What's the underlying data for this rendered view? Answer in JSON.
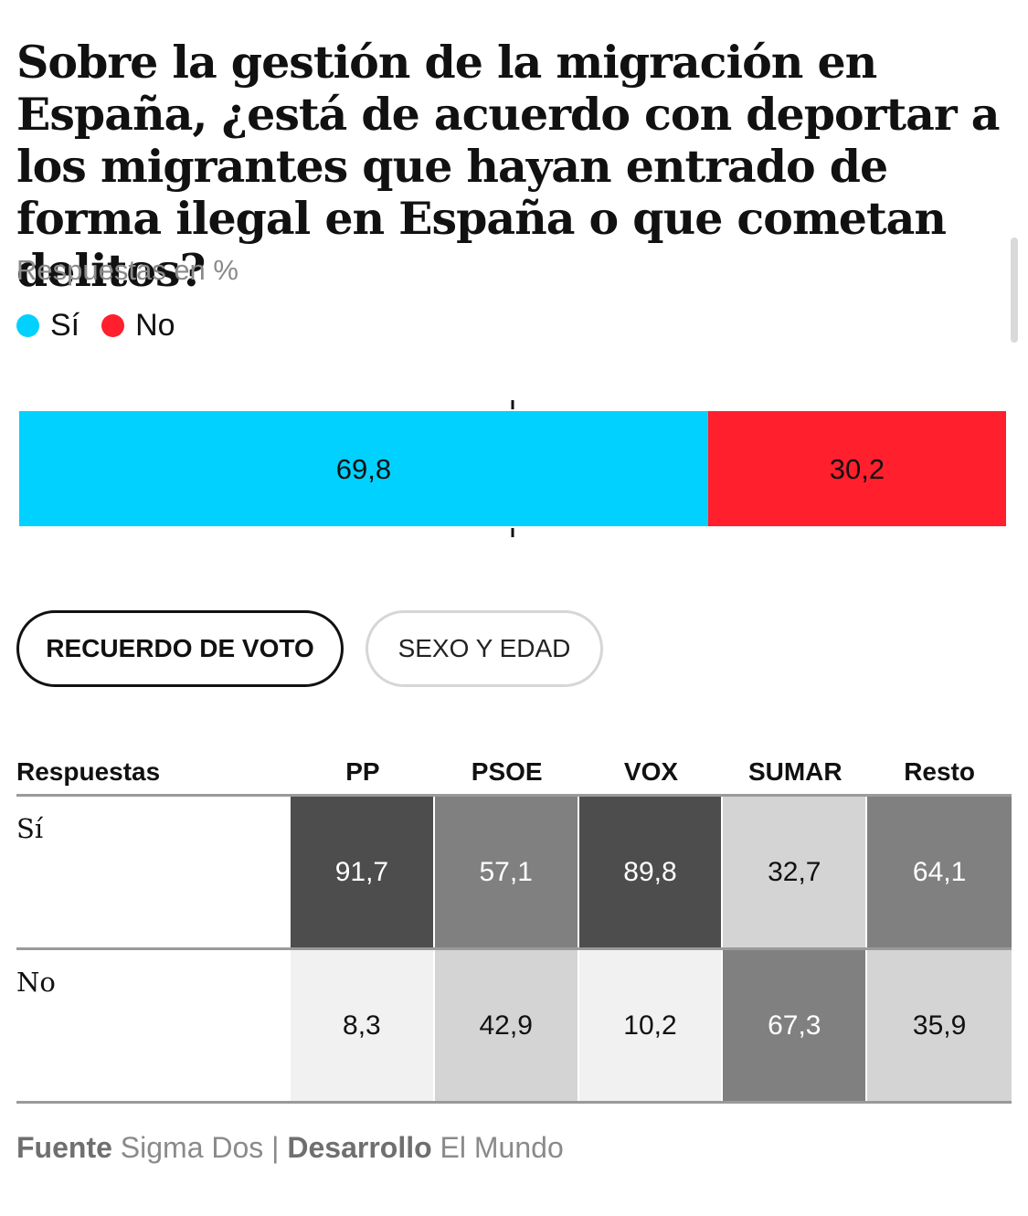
{
  "title": "Sobre la gestión de la migración en España, ¿está de acuerdo con deportar a los migrantes que hayan entrado de forma ilegal en España o que cometan delitos?",
  "subtitle": "Respuestas en %",
  "legend": [
    {
      "label": "Sí",
      "color": "#00d1ff"
    },
    {
      "label": "No",
      "color": "#ff1f2d"
    }
  ],
  "chart_data": [
    {
      "type": "bar",
      "orientation": "horizontal-stacked",
      "title": "Sobre la gestión de la migración en España, ¿está de acuerdo con deportar a los migrantes que hayan entrado de forma ilegal en España o que cometan delitos?",
      "subtitle": "Respuestas en %",
      "series": [
        {
          "name": "Sí",
          "values": [
            69.8
          ],
          "label": "69,8",
          "color": "#00d1ff"
        },
        {
          "name": "No",
          "values": [
            30.2
          ],
          "label": "30,2",
          "color": "#ff1f2d"
        }
      ],
      "xlim": [
        0,
        100
      ],
      "midline": 50
    },
    {
      "type": "table",
      "title": "Recuerdo de voto",
      "columns": [
        "PP",
        "PSOE",
        "VOX",
        "SUMAR",
        "Resto"
      ],
      "rows": [
        {
          "name": "Sí",
          "values": [
            91.7,
            57.1,
            89.8,
            32.7,
            64.1
          ],
          "labels": [
            "91,7",
            "57,1",
            "89,8",
            "32,7",
            "64,1"
          ]
        },
        {
          "name": "No",
          "values": [
            8.3,
            42.9,
            10.2,
            67.3,
            35.9
          ],
          "labels": [
            "8,3",
            "42,9",
            "10,2",
            "67,3",
            "35,9"
          ]
        }
      ]
    }
  ],
  "tabs": [
    {
      "label": "RECUERDO DE VOTO",
      "active": true
    },
    {
      "label": "SEXO Y EDAD",
      "active": false
    }
  ],
  "table": {
    "header_label": "Respuestas",
    "columns": [
      "PP",
      "PSOE",
      "VOX",
      "SUMAR",
      "Resto"
    ],
    "row_labels": [
      "Sí",
      "No"
    ]
  },
  "heat_colors": {
    "dark": "#4d4d4d",
    "mid": "#808080",
    "light": "#d4d4d4",
    "pale": "#f1f1f1"
  },
  "footer": {
    "source_label": "Fuente",
    "source": "Sigma Dos",
    "separator": "|",
    "dev_label": "Desarrollo",
    "dev": "El Mundo"
  }
}
